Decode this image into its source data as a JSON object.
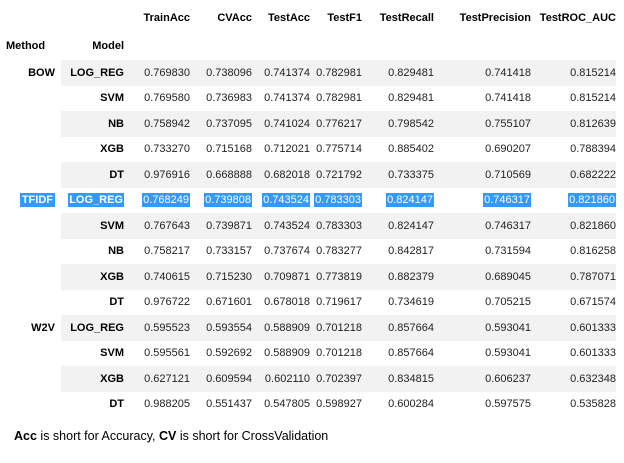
{
  "columns": [
    "TrainAcc",
    "CVAcc",
    "TestAcc",
    "TestF1",
    "TestRecall",
    "TestPrecision",
    "TestROC_AUC"
  ],
  "index_names": {
    "method": "Method",
    "model": "Model"
  },
  "rows": [
    {
      "method": "BOW",
      "model": "LOG_REG",
      "values": [
        "0.769830",
        "0.738096",
        "0.741374",
        "0.782981",
        "0.829481",
        "0.741418",
        "0.815214"
      ]
    },
    {
      "method": "",
      "model": "SVM",
      "values": [
        "0.769580",
        "0.736983",
        "0.741374",
        "0.782981",
        "0.829481",
        "0.741418",
        "0.815214"
      ]
    },
    {
      "method": "",
      "model": "NB",
      "values": [
        "0.758942",
        "0.737095",
        "0.741024",
        "0.776217",
        "0.798542",
        "0.755107",
        "0.812639"
      ]
    },
    {
      "method": "",
      "model": "XGB",
      "values": [
        "0.733270",
        "0.715168",
        "0.712021",
        "0.775714",
        "0.885402",
        "0.690207",
        "0.788394"
      ]
    },
    {
      "method": "",
      "model": "DT",
      "values": [
        "0.976916",
        "0.668888",
        "0.682018",
        "0.721792",
        "0.733375",
        "0.710569",
        "0.682222"
      ]
    },
    {
      "method": "TFIDF",
      "model": "LOG_REG",
      "values": [
        "0.768249",
        "0.739808",
        "0.743524",
        "0.783303",
        "0.824147",
        "0.746317",
        "0.821860"
      ]
    },
    {
      "method": "",
      "model": "SVM",
      "values": [
        "0.767643",
        "0.739871",
        "0.743524",
        "0.783303",
        "0.824147",
        "0.746317",
        "0.821860"
      ]
    },
    {
      "method": "",
      "model": "NB",
      "values": [
        "0.758217",
        "0.733157",
        "0.737674",
        "0.783277",
        "0.842817",
        "0.731594",
        "0.816258"
      ]
    },
    {
      "method": "",
      "model": "XGB",
      "values": [
        "0.740615",
        "0.715230",
        "0.709871",
        "0.773819",
        "0.882379",
        "0.689045",
        "0.787071"
      ]
    },
    {
      "method": "",
      "model": "DT",
      "values": [
        "0.976722",
        "0.671601",
        "0.678018",
        "0.719617",
        "0.734619",
        "0.705215",
        "0.671574"
      ]
    },
    {
      "method": "W2V",
      "model": "LOG_REG",
      "values": [
        "0.595523",
        "0.593554",
        "0.588909",
        "0.701218",
        "0.857664",
        "0.593041",
        "0.601333"
      ]
    },
    {
      "method": "",
      "model": "SVM",
      "values": [
        "0.595561",
        "0.592692",
        "0.588909",
        "0.701218",
        "0.857664",
        "0.593041",
        "0.601333"
      ]
    },
    {
      "method": "",
      "model": "XGB",
      "values": [
        "0.627121",
        "0.609594",
        "0.602110",
        "0.702397",
        "0.834815",
        "0.606237",
        "0.632348"
      ]
    },
    {
      "method": "",
      "model": "DT",
      "values": [
        "0.988205",
        "0.551437",
        "0.547805",
        "0.598927",
        "0.600284",
        "0.597575",
        "0.535828"
      ]
    }
  ],
  "selected_row": 5,
  "selection_color": "#3399ff",
  "stripe_color": "#f2f2f2",
  "note": {
    "acc_bold": "Acc",
    "acc_text": " is short for Accuracy, ",
    "cv_bold": "CV",
    "cv_text": " is short for CrossValidation"
  }
}
